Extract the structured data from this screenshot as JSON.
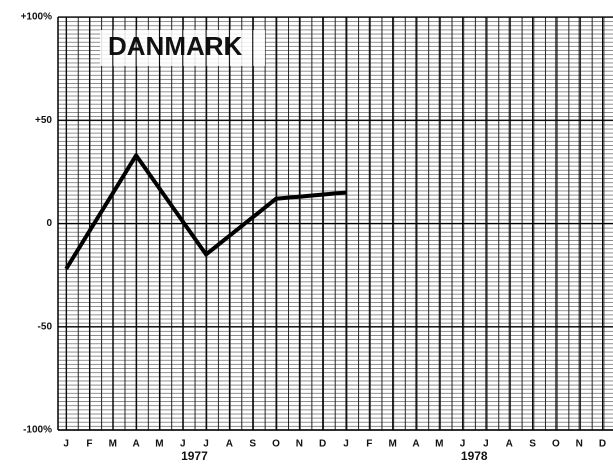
{
  "chart_data": {
    "type": "line",
    "title": "DANMARK",
    "years": [
      "1977",
      "1978"
    ],
    "xlim": [
      -0.35,
      23.45
    ],
    "xticks": [
      {
        "value": 0,
        "label": "J"
      },
      {
        "value": 1,
        "label": "F"
      },
      {
        "value": 2,
        "label": "M"
      },
      {
        "value": 3,
        "label": "A"
      },
      {
        "value": 4,
        "label": "M"
      },
      {
        "value": 5,
        "label": "J"
      },
      {
        "value": 6,
        "label": "J"
      },
      {
        "value": 7,
        "label": "A"
      },
      {
        "value": 8,
        "label": "S"
      },
      {
        "value": 9,
        "label": "O"
      },
      {
        "value": 10,
        "label": "N"
      },
      {
        "value": 11,
        "label": "D"
      },
      {
        "value": 12,
        "label": "J"
      },
      {
        "value": 13,
        "label": "F"
      },
      {
        "value": 14,
        "label": "M"
      },
      {
        "value": 15,
        "label": "A"
      },
      {
        "value": 16,
        "label": "M"
      },
      {
        "value": 17,
        "label": "J"
      },
      {
        "value": 18,
        "label": "J"
      },
      {
        "value": 19,
        "label": "A"
      },
      {
        "value": 20,
        "label": "S"
      },
      {
        "value": 21,
        "label": "O"
      },
      {
        "value": 22,
        "label": "N"
      },
      {
        "value": 23,
        "label": "D"
      }
    ],
    "ylim": [
      -100,
      100
    ],
    "yticks": [
      {
        "value": 100,
        "label": "+100%"
      },
      {
        "value": 50,
        "label": "+50"
      },
      0,
      -50,
      {
        "value": -100,
        "label": "-100%"
      }
    ],
    "grid": true,
    "series": [
      {
        "color": "#000000",
        "x": [
          0,
          3,
          6,
          9,
          12
        ],
        "values": [
          -22,
          33,
          -15,
          12,
          15
        ]
      }
    ]
  }
}
